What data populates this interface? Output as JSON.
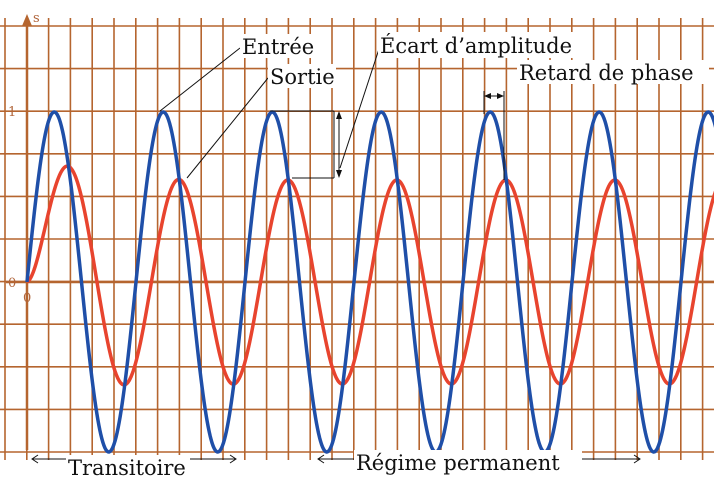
{
  "chart_data": {
    "type": "line",
    "title": "",
    "xlabel": "",
    "ylabel": "s",
    "ylim": [
      -1.0,
      1.35
    ],
    "xlim": [
      0,
      6.5
    ],
    "grid": true,
    "yticks": [
      {
        "value": 1,
        "label": "1"
      },
      {
        "value": 0,
        "label": "0"
      }
    ],
    "xticks": [
      {
        "value": 0,
        "label": "0"
      }
    ],
    "series": [
      {
        "name": "Entrée",
        "color": "#1f4fa8",
        "amplitude": 1.0,
        "period": 1.0,
        "x": [
          0,
          0.25,
          0.5,
          0.75,
          1.0,
          1.25,
          1.5,
          1.75,
          2.0,
          2.25,
          2.5,
          2.75,
          3.0,
          3.25,
          3.5,
          3.75,
          4.0,
          4.25,
          4.5,
          4.75,
          5.0,
          5.25,
          5.5,
          5.75,
          6.0,
          6.25,
          6.5
        ],
        "values": [
          0,
          1,
          0,
          -1,
          0,
          1,
          0,
          -1,
          0,
          1,
          0,
          -1,
          0,
          1,
          0,
          -1,
          0,
          1,
          0,
          -1,
          0,
          1,
          0,
          -1,
          0,
          1,
          0.75
        ]
      },
      {
        "name": "Sortie",
        "color": "#e8442e",
        "steady_amplitude": 0.6,
        "x": [
          0.0,
          0.4,
          0.9,
          1.4,
          1.9,
          2.4,
          2.9,
          3.4,
          3.9,
          4.4,
          4.9,
          5.4,
          5.9,
          6.4
        ],
        "values": [
          0.0,
          0.66,
          -0.58,
          0.6,
          -0.6,
          0.6,
          -0.6,
          0.6,
          -0.6,
          0.6,
          -0.6,
          0.6,
          -0.6,
          0.5
        ]
      }
    ],
    "annotations": [
      {
        "key": "entree",
        "text": "Entrée"
      },
      {
        "key": "sortie",
        "text": "Sortie"
      },
      {
        "key": "ecart",
        "text": "Écart d’amplitude"
      },
      {
        "key": "retard",
        "text": "Retard de phase"
      },
      {
        "key": "transitoire",
        "text": "Transitoire"
      },
      {
        "key": "regime",
        "text": "Régime permanent"
      }
    ],
    "colors": {
      "grid": "#b5652f",
      "axis": "#b5652f",
      "annotation": "#111111"
    }
  }
}
